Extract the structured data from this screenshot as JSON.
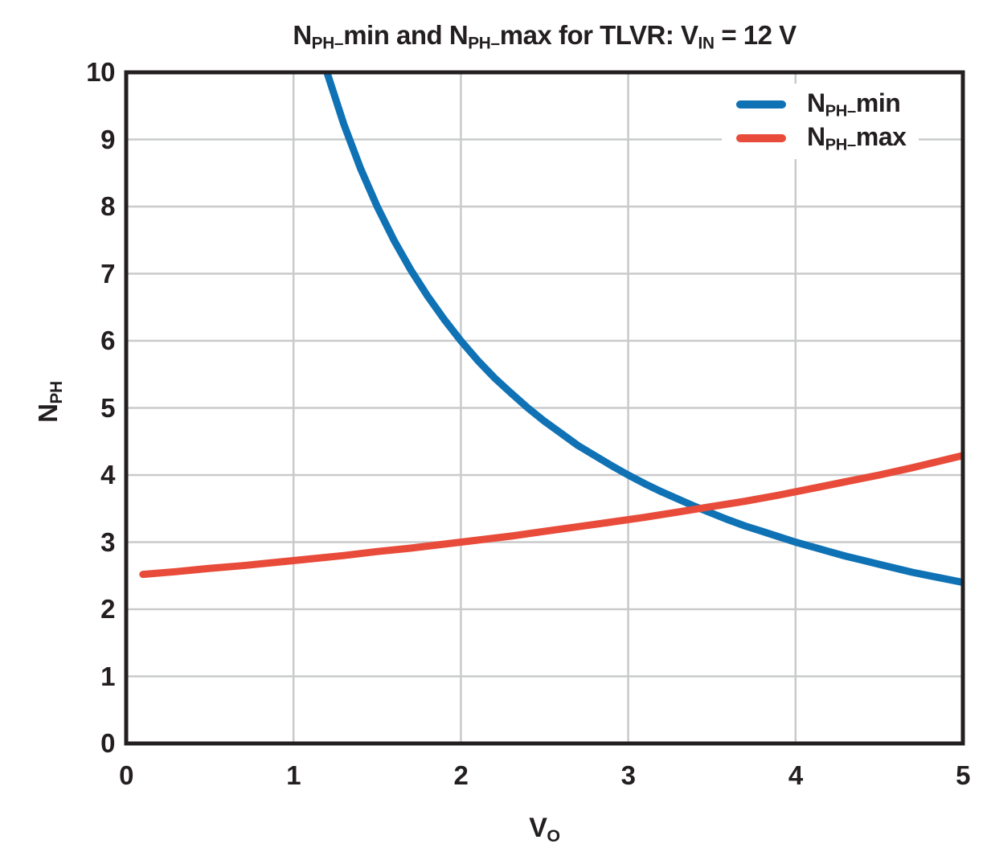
{
  "figure": {
    "title_text": "NPH_min and NPH_max for TLVR: VIN = 12 V",
    "title_segments": [
      {
        "t": "N"
      },
      {
        "t": "PH–",
        "sub": true
      },
      {
        "t": "min and N"
      },
      {
        "t": "PH–",
        "sub": true
      },
      {
        "t": "max for TLVR: V"
      },
      {
        "t": "IN",
        "sub": true
      },
      {
        "t": " = 12 V"
      }
    ],
    "xlabel_segments": [
      {
        "t": "V"
      },
      {
        "t": "O",
        "sub": true
      }
    ],
    "ylabel_segments": [
      {
        "t": "N"
      },
      {
        "t": "PH",
        "sub": true
      }
    ]
  },
  "chart_data": {
    "type": "line",
    "title": "NPH_min and NPH_max for TLVR: VIN = 12 V",
    "xlabel": "VO",
    "ylabel": "NPH",
    "xlim": [
      0,
      5
    ],
    "ylim": [
      0,
      10
    ],
    "xticks": [
      0,
      1,
      2,
      3,
      4,
      5
    ],
    "yticks": [
      0,
      1,
      2,
      3,
      4,
      5,
      6,
      7,
      8,
      9,
      10
    ],
    "grid": true,
    "legend_position": "upper right",
    "frame_color": "#231f20",
    "grid_color": "#c9cacb",
    "line_width": 9,
    "series": [
      {
        "id": "nph-min",
        "name": "NPH_min",
        "color": "#0f72b5",
        "label_segments": [
          {
            "t": "N"
          },
          {
            "t": "PH–",
            "sub": true
          },
          {
            "t": "min"
          }
        ],
        "x": [
          1.2,
          1.3,
          1.4,
          1.5,
          1.6,
          1.7,
          1.8,
          1.9,
          2.0,
          2.1,
          2.2,
          2.3,
          2.4,
          2.5,
          2.6,
          2.7,
          2.8,
          2.9,
          3.0,
          3.1,
          3.2,
          3.3,
          3.4,
          3.5,
          3.6,
          3.7,
          3.8,
          3.9,
          4.0,
          4.1,
          4.2,
          4.3,
          4.4,
          4.5,
          4.6,
          4.7,
          4.8,
          4.9,
          5.0
        ],
        "y": [
          10,
          9.23,
          8.57,
          8,
          7.5,
          7.06,
          6.67,
          6.32,
          6,
          5.71,
          5.45,
          5.22,
          5,
          4.8,
          4.62,
          4.44,
          4.29,
          4.14,
          4,
          3.87,
          3.75,
          3.64,
          3.53,
          3.43,
          3.33,
          3.24,
          3.16,
          3.08,
          3,
          2.93,
          2.86,
          2.79,
          2.73,
          2.67,
          2.61,
          2.55,
          2.5,
          2.45,
          2.4
        ]
      },
      {
        "id": "nph-max",
        "name": "NPH_max",
        "color": "#e84b3a",
        "label_segments": [
          {
            "t": "N"
          },
          {
            "t": "PH–",
            "sub": true
          },
          {
            "t": "max"
          }
        ],
        "x": [
          0.1,
          0.3,
          0.5,
          0.7,
          0.9,
          1.1,
          1.3,
          1.5,
          1.7,
          1.9,
          2.1,
          2.3,
          2.5,
          2.7,
          2.9,
          3.1,
          3.3,
          3.5,
          3.7,
          3.9,
          4.1,
          4.3,
          4.5,
          4.7,
          4.9,
          5.0
        ],
        "y": [
          2.52,
          2.56,
          2.61,
          2.65,
          2.7,
          2.75,
          2.8,
          2.86,
          2.91,
          2.97,
          3.03,
          3.09,
          3.16,
          3.23,
          3.3,
          3.37,
          3.45,
          3.53,
          3.61,
          3.7,
          3.8,
          3.9,
          4,
          4.11,
          4.23,
          4.29
        ]
      }
    ]
  }
}
